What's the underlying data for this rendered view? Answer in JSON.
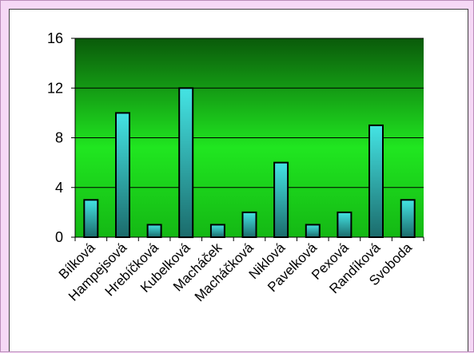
{
  "chart_data": {
    "type": "bar",
    "title": "",
    "xlabel": "",
    "ylabel": "",
    "categories": [
      "Bílková",
      "Hampejsová",
      "Hrebíčková",
      "Kubelková",
      "Macháček",
      "Macháčková",
      "Niklová",
      "Pavelková",
      "Pexová",
      "Randíková",
      "Svoboda"
    ],
    "values": [
      3,
      10,
      1,
      12,
      1,
      2,
      6,
      1,
      2,
      9,
      3
    ],
    "ylim": [
      0,
      16
    ],
    "yticks": [
      0,
      4,
      8,
      12,
      16
    ],
    "grid": true,
    "legend": "none",
    "colors": {
      "page_background": "#f6d8f6",
      "plot_top": "#0a5a0a",
      "plot_mid": "#22e822",
      "bar_light": "#44e4e4",
      "bar_dark": "#1b6b6b",
      "bar_outline": "#000000"
    }
  }
}
